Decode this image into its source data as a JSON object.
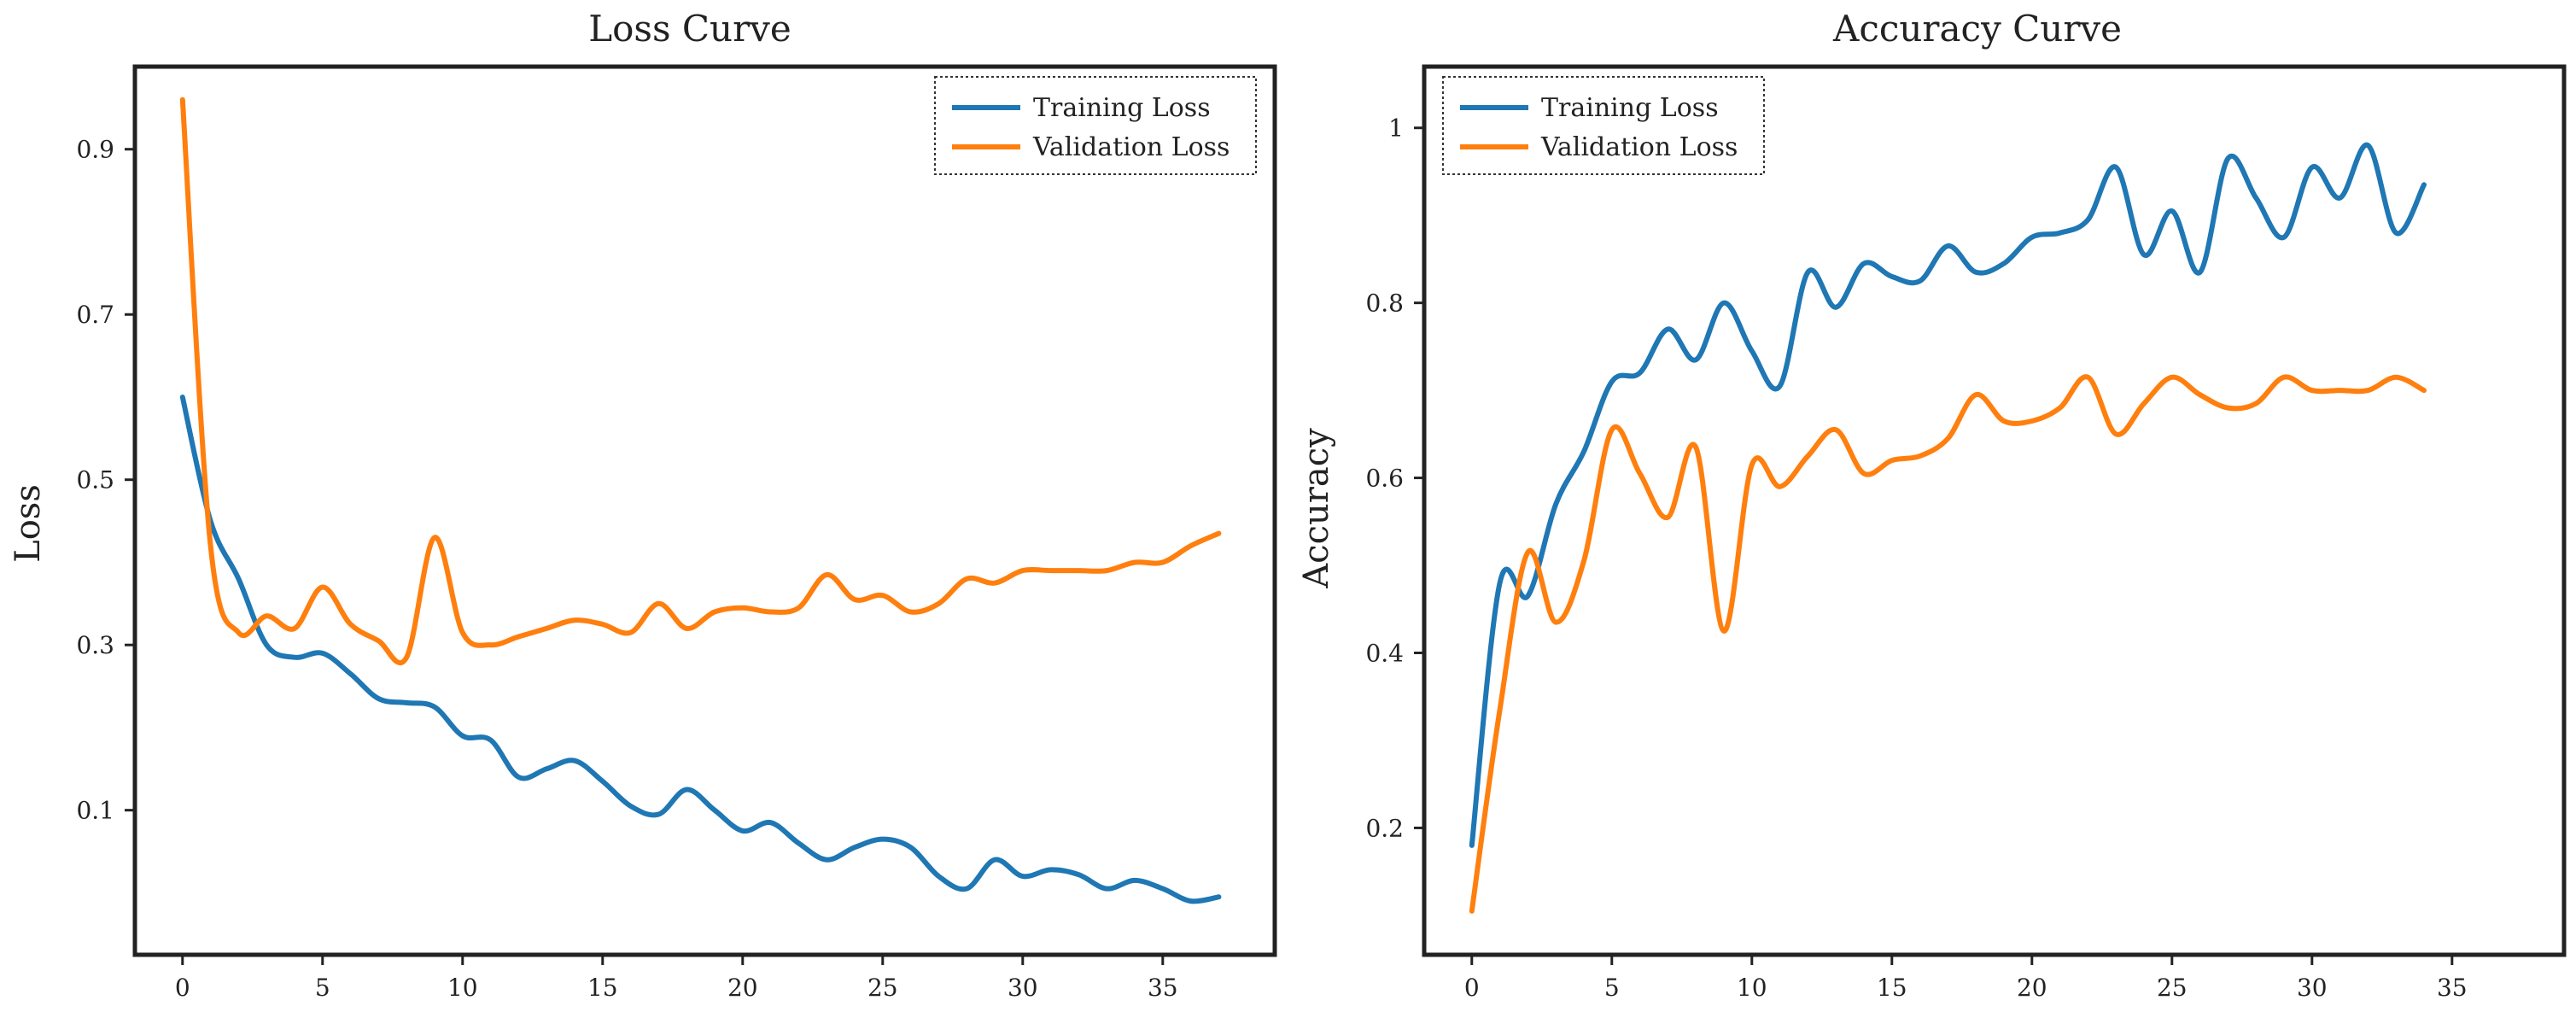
{
  "chart_data": [
    {
      "type": "line",
      "title": "Loss Curve",
      "xlabel": "",
      "ylabel": "Loss",
      "xlim": [
        -1.7,
        39
      ],
      "ylim": [
        -0.075,
        1.0
      ],
      "xticks": [
        0,
        5,
        10,
        15,
        20,
        25,
        30,
        35
      ],
      "yticks": [
        0.1,
        0.3,
        0.5,
        0.7,
        0.9
      ],
      "grid": false,
      "legend_position": "top-right",
      "series": [
        {
          "name": "Training Loss",
          "color": "#1f77b4",
          "x": [
            0,
            1,
            2,
            3,
            4,
            5,
            6,
            7,
            8,
            9,
            10,
            11,
            12,
            13,
            14,
            15,
            16,
            17,
            18,
            19,
            20,
            21,
            22,
            23,
            24,
            25,
            26,
            27,
            28,
            29,
            30,
            31,
            32,
            33,
            34,
            35,
            36,
            37
          ],
          "values": [
            0.6,
            0.45,
            0.38,
            0.3,
            0.285,
            0.29,
            0.265,
            0.235,
            0.23,
            0.225,
            0.19,
            0.185,
            0.14,
            0.15,
            0.16,
            0.135,
            0.105,
            0.095,
            0.125,
            0.1,
            0.075,
            0.085,
            0.06,
            0.04,
            0.055,
            0.065,
            0.055,
            0.02,
            0.005,
            0.04,
            0.02,
            0.028,
            0.022,
            0.005,
            0.015,
            0.005,
            -0.01,
            -0.005
          ]
        },
        {
          "name": "Validation Loss",
          "color": "#ff7f0e",
          "x": [
            0,
            1,
            2,
            3,
            4,
            5,
            6,
            7,
            8,
            9,
            10,
            11,
            12,
            13,
            14,
            15,
            16,
            17,
            18,
            19,
            20,
            21,
            22,
            23,
            24,
            25,
            26,
            27,
            28,
            29,
            30,
            31,
            32,
            33,
            34,
            35,
            36,
            37
          ],
          "values": [
            0.96,
            0.42,
            0.315,
            0.335,
            0.32,
            0.37,
            0.325,
            0.305,
            0.285,
            0.43,
            0.315,
            0.3,
            0.31,
            0.32,
            0.33,
            0.325,
            0.315,
            0.35,
            0.32,
            0.34,
            0.345,
            0.34,
            0.345,
            0.385,
            0.355,
            0.36,
            0.34,
            0.35,
            0.38,
            0.375,
            0.39,
            0.39,
            0.39,
            0.39,
            0.4,
            0.4,
            0.42,
            0.435
          ]
        }
      ]
    },
    {
      "type": "line",
      "title": "Accuracy Curve",
      "xlabel": "",
      "ylabel": "Accuracy",
      "xlim": [
        -1.7,
        39
      ],
      "ylim": [
        0.055,
        1.07
      ],
      "xticks": [
        0,
        5,
        10,
        15,
        20,
        25,
        30,
        35
      ],
      "yticks": [
        0.2,
        0.4,
        0.6,
        0.8,
        1
      ],
      "grid": false,
      "legend_position": "top-left",
      "series": [
        {
          "name": "Training Loss",
          "color": "#1f77b4",
          "x": [
            0,
            1,
            2,
            3,
            4,
            5,
            6,
            7,
            8,
            9,
            10,
            11,
            12,
            13,
            14,
            15,
            16,
            17,
            18,
            19,
            20,
            21,
            22,
            23,
            24,
            25,
            26,
            27,
            28,
            29,
            30,
            31,
            32,
            33,
            34
          ],
          "values": [
            0.18,
            0.48,
            0.465,
            0.57,
            0.63,
            0.71,
            0.72,
            0.77,
            0.735,
            0.8,
            0.745,
            0.705,
            0.835,
            0.795,
            0.845,
            0.83,
            0.825,
            0.865,
            0.835,
            0.845,
            0.875,
            0.88,
            0.895,
            0.955,
            0.855,
            0.905,
            0.835,
            0.965,
            0.92,
            0.875,
            0.955,
            0.92,
            0.98,
            0.88,
            0.935
          ]
        },
        {
          "name": "Validation Loss",
          "color": "#ff7f0e",
          "x": [
            0,
            1,
            2,
            3,
            4,
            5,
            6,
            7,
            8,
            9,
            10,
            11,
            12,
            13,
            14,
            15,
            16,
            17,
            18,
            19,
            20,
            21,
            22,
            23,
            24,
            25,
            26,
            27,
            28,
            29,
            30,
            31,
            32,
            33,
            34
          ],
          "values": [
            0.105,
            0.335,
            0.515,
            0.435,
            0.505,
            0.655,
            0.605,
            0.555,
            0.635,
            0.425,
            0.615,
            0.59,
            0.625,
            0.655,
            0.605,
            0.62,
            0.625,
            0.645,
            0.695,
            0.665,
            0.665,
            0.68,
            0.715,
            0.65,
            0.685,
            0.715,
            0.695,
            0.68,
            0.685,
            0.715,
            0.7,
            0.7,
            0.7,
            0.715,
            0.7
          ]
        }
      ]
    }
  ]
}
